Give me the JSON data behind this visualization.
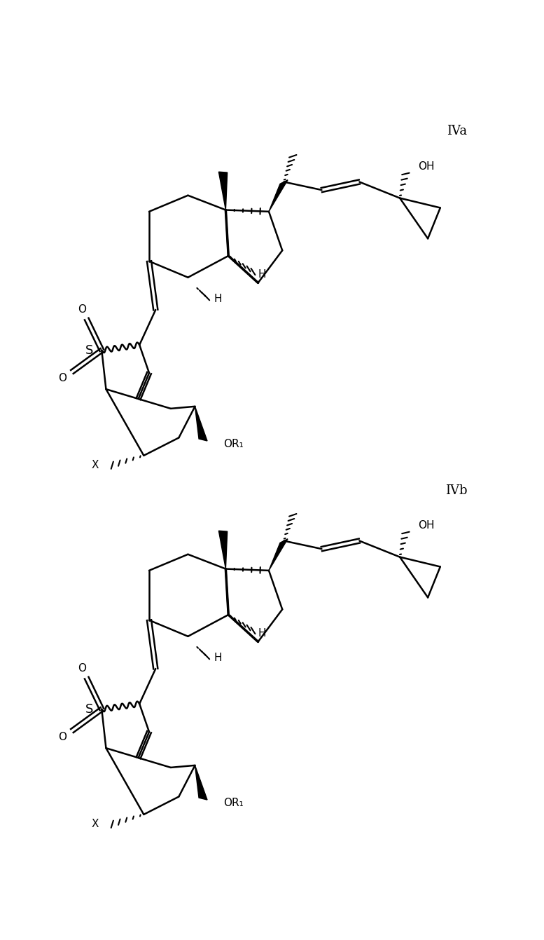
{
  "bg_color": "#ffffff",
  "line_color": "#000000",
  "label_IVa": "IVa",
  "label_IVb": "IVb",
  "label_H": "H",
  "label_OH": "OH",
  "label_O": "O",
  "label_S": "S",
  "label_X": "X",
  "label_OR1": "OR₁",
  "fontsize_label": 11,
  "fontsize_compound": 13,
  "figwidth": 7.77,
  "figheight": 13.41,
  "dpi": 100
}
